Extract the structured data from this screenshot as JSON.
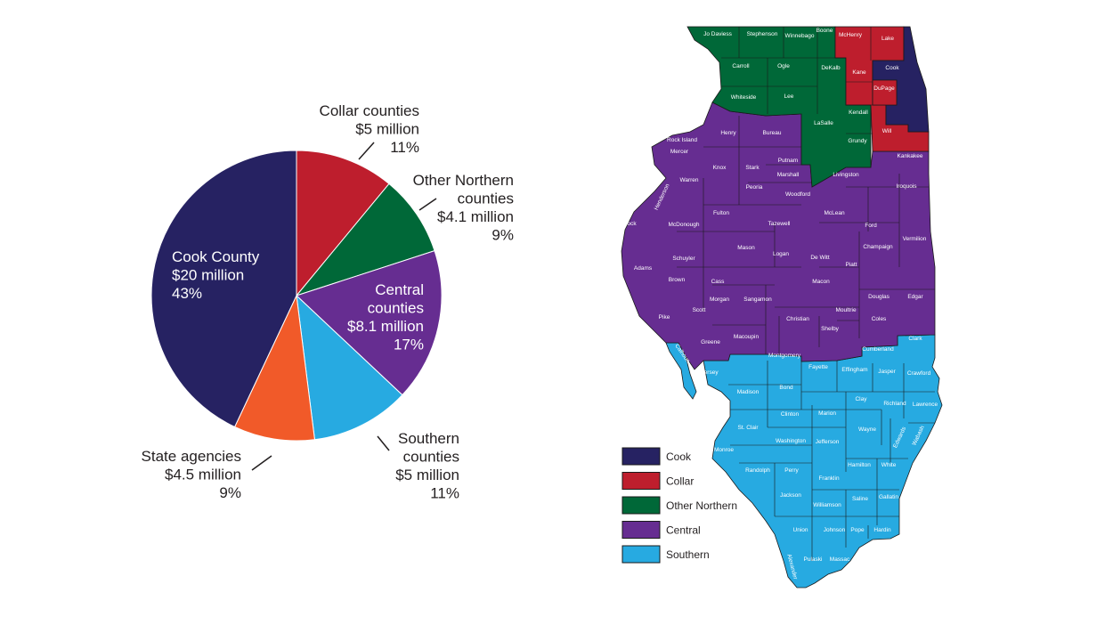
{
  "chart_data": {
    "type": "pie",
    "slices": [
      {
        "key": "cook",
        "label_lines": [
          "Cook County",
          "$20 million",
          "43%"
        ],
        "value": 43,
        "color": "#262262"
      },
      {
        "key": "collar",
        "label_lines": [
          "Collar counties",
          "$5 million",
          "11%"
        ],
        "value": 11,
        "color": "#be1e2d"
      },
      {
        "key": "other_northern",
        "label_lines": [
          "Other Northern",
          "counties",
          "$4.1 million",
          "9%"
        ],
        "value": 9,
        "color": "#006838"
      },
      {
        "key": "central",
        "label_lines": [
          "Central",
          "counties",
          "$8.1 million",
          "17%"
        ],
        "value": 17,
        "color": "#662d91"
      },
      {
        "key": "southern",
        "label_lines": [
          "Southern",
          "counties",
          "$5 million",
          "11%"
        ],
        "value": 11,
        "color": "#27aae1"
      },
      {
        "key": "state_agencies",
        "label_lines": [
          "State agencies",
          "$4.5 million",
          "9%"
        ],
        "value": 9,
        "color": "#f15a29"
      }
    ]
  },
  "map": {
    "legend": [
      {
        "label": "Cook",
        "color": "#262262"
      },
      {
        "label": "Collar",
        "color": "#be1e2d"
      },
      {
        "label": "Other Northern",
        "color": "#006838"
      },
      {
        "label": "Central",
        "color": "#662d91"
      },
      {
        "label": "Southern",
        "color": "#27aae1"
      }
    ],
    "counties": [
      {
        "name": "Jo Daviess"
      },
      {
        "name": "Stephenson"
      },
      {
        "name": "Winnebago"
      },
      {
        "name": "Boone"
      },
      {
        "name": "McHenry"
      },
      {
        "name": "Lake"
      },
      {
        "name": "Carroll"
      },
      {
        "name": "Ogle"
      },
      {
        "name": "DeKalb"
      },
      {
        "name": "Kane"
      },
      {
        "name": "Cook"
      },
      {
        "name": "DuPage"
      },
      {
        "name": "Whiteside"
      },
      {
        "name": "Lee"
      },
      {
        "name": "Kendall"
      },
      {
        "name": "Will"
      },
      {
        "name": "LaSalle"
      },
      {
        "name": "Grundy"
      },
      {
        "name": "Rock Island"
      },
      {
        "name": "Henry"
      },
      {
        "name": "Bureau"
      },
      {
        "name": "Mercer"
      },
      {
        "name": "Putnam"
      },
      {
        "name": "Kankakee"
      },
      {
        "name": "Knox"
      },
      {
        "name": "Stark"
      },
      {
        "name": "Marshall"
      },
      {
        "name": "Livingston"
      },
      {
        "name": "Warren"
      },
      {
        "name": "Peoria"
      },
      {
        "name": "Woodford"
      },
      {
        "name": "Iroquois"
      },
      {
        "name": "Henderson"
      },
      {
        "name": "Fulton"
      },
      {
        "name": "McLean"
      },
      {
        "name": "Hancock"
      },
      {
        "name": "McDonough"
      },
      {
        "name": "Tazewell"
      },
      {
        "name": "Ford"
      },
      {
        "name": "Vermilion"
      },
      {
        "name": "Champaign"
      },
      {
        "name": "Mason"
      },
      {
        "name": "Logan"
      },
      {
        "name": "Schuyler"
      },
      {
        "name": "Adams"
      },
      {
        "name": "De Witt"
      },
      {
        "name": "Piatt"
      },
      {
        "name": "Brown"
      },
      {
        "name": "Cass"
      },
      {
        "name": "Macon"
      },
      {
        "name": "Morgan"
      },
      {
        "name": "Sangamon"
      },
      {
        "name": "Douglas"
      },
      {
        "name": "Edgar"
      },
      {
        "name": "Scott"
      },
      {
        "name": "Pike"
      },
      {
        "name": "Moultrie"
      },
      {
        "name": "Christian"
      },
      {
        "name": "Coles"
      },
      {
        "name": "Shelby"
      },
      {
        "name": "Greene"
      },
      {
        "name": "Macoupin"
      },
      {
        "name": "Calhoun"
      },
      {
        "name": "Clark"
      },
      {
        "name": "Cumberland"
      },
      {
        "name": "Montgomery"
      },
      {
        "name": "Jersey"
      },
      {
        "name": "Fayette"
      },
      {
        "name": "Effingham"
      },
      {
        "name": "Jasper"
      },
      {
        "name": "Crawford"
      },
      {
        "name": "Madison"
      },
      {
        "name": "Bond"
      },
      {
        "name": "Clay"
      },
      {
        "name": "Clinton"
      },
      {
        "name": "Marion"
      },
      {
        "name": "Richland"
      },
      {
        "name": "Lawrence"
      },
      {
        "name": "St. Clair"
      },
      {
        "name": "Wayne"
      },
      {
        "name": "Washington"
      },
      {
        "name": "Jefferson"
      },
      {
        "name": "Edwards"
      },
      {
        "name": "Wabash"
      },
      {
        "name": "Monroe"
      },
      {
        "name": "Hamilton"
      },
      {
        "name": "White"
      },
      {
        "name": "Randolph"
      },
      {
        "name": "Perry"
      },
      {
        "name": "Franklin"
      },
      {
        "name": "Jackson"
      },
      {
        "name": "Saline"
      },
      {
        "name": "Gallatin"
      },
      {
        "name": "Williamson"
      },
      {
        "name": "Union"
      },
      {
        "name": "Johnson"
      },
      {
        "name": "Pope"
      },
      {
        "name": "Hardin"
      },
      {
        "name": "Pulaski"
      },
      {
        "name": "Massac"
      },
      {
        "name": "Alexander"
      }
    ]
  }
}
